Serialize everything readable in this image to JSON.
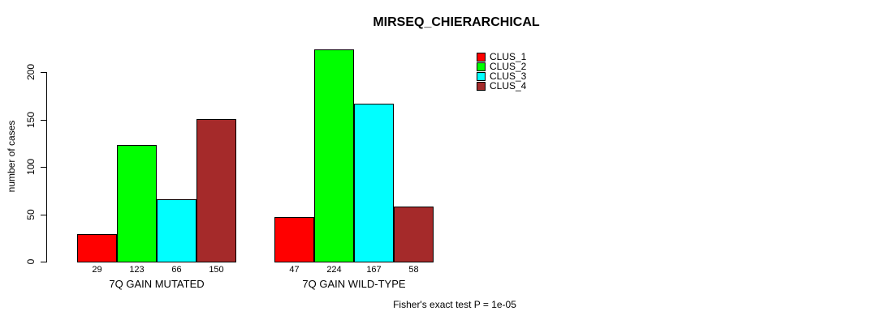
{
  "chart_data": {
    "type": "bar",
    "title": "MIRSEQ_CHIERARCHICAL",
    "ylabel": "number of cases",
    "xlabel": "",
    "ylim": [
      0,
      200
    ],
    "yticks": [
      0,
      50,
      100,
      150,
      200
    ],
    "categories": [
      "7Q GAIN MUTATED",
      "7Q GAIN WILD-TYPE"
    ],
    "series": [
      {
        "name": "CLUS_1",
        "color": "#ff0000",
        "values": [
          29,
          47
        ]
      },
      {
        "name": "CLUS_2",
        "color": "#00ff00",
        "values": [
          123,
          224
        ]
      },
      {
        "name": "CLUS_3",
        "color": "#00ffff",
        "values": [
          66,
          167
        ]
      },
      {
        "name": "CLUS_4",
        "color": "#a52a2a",
        "values": [
          150,
          58
        ]
      }
    ],
    "bar_value_labels": true,
    "legend_position": "top-right",
    "grid": false,
    "annotation": "Fisher's exact test P = 1e-05"
  }
}
